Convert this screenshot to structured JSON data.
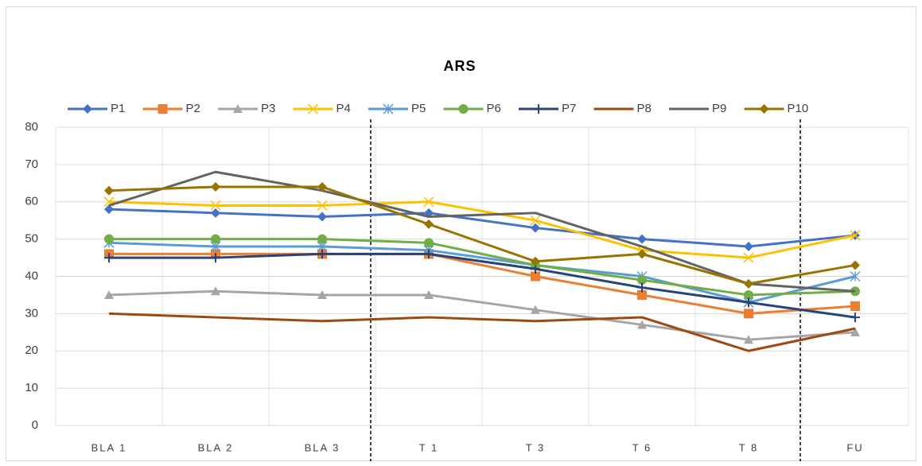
{
  "chart_data": {
    "type": "line",
    "title": "ARS",
    "categories": [
      "BLA 1",
      "BLA 2",
      "BLA 3",
      "T 1",
      "T 3",
      "T 6",
      "T 8",
      "FU"
    ],
    "ylim": [
      0,
      80
    ],
    "yticks": [
      0,
      10,
      20,
      30,
      40,
      50,
      60,
      70,
      80
    ],
    "grid": true,
    "legend": "top",
    "series": [
      {
        "name": "P1",
        "color": "#4472c4",
        "marker": "diamond",
        "values": [
          58,
          57,
          56,
          57,
          53,
          50,
          48,
          51
        ]
      },
      {
        "name": "P2",
        "color": "#ed7d31",
        "marker": "square",
        "values": [
          46,
          46,
          46,
          46,
          40,
          35,
          30,
          32
        ]
      },
      {
        "name": "P3",
        "color": "#a5a5a5",
        "marker": "triangle",
        "values": [
          35,
          36,
          35,
          35,
          31,
          27,
          23,
          25
        ]
      },
      {
        "name": "P4",
        "color": "#ffc000",
        "marker": "x",
        "values": [
          60,
          59,
          59,
          60,
          55,
          47,
          45,
          51
        ]
      },
      {
        "name": "P5",
        "color": "#5b9bd5",
        "marker": "star",
        "values": [
          49,
          48,
          48,
          47,
          43,
          40,
          33,
          40
        ]
      },
      {
        "name": "P6",
        "color": "#70ad47",
        "marker": "circle",
        "values": [
          50,
          50,
          50,
          49,
          43,
          39,
          35,
          36
        ]
      },
      {
        "name": "P7",
        "color": "#264478",
        "marker": "plus",
        "values": [
          45,
          45,
          46,
          46,
          42,
          37,
          33,
          29
        ]
      },
      {
        "name": "P8",
        "color": "#9e480e",
        "marker": "none",
        "values": [
          30,
          29,
          28,
          29,
          28,
          29,
          20,
          26
        ]
      },
      {
        "name": "P9",
        "color": "#636363",
        "marker": "none",
        "values": [
          59,
          68,
          63,
          56,
          57,
          48,
          38,
          36
        ]
      },
      {
        "name": "P10",
        "color": "#997300",
        "marker": "diamond",
        "values": [
          63,
          64,
          64,
          54,
          44,
          46,
          38,
          43
        ]
      }
    ]
  }
}
